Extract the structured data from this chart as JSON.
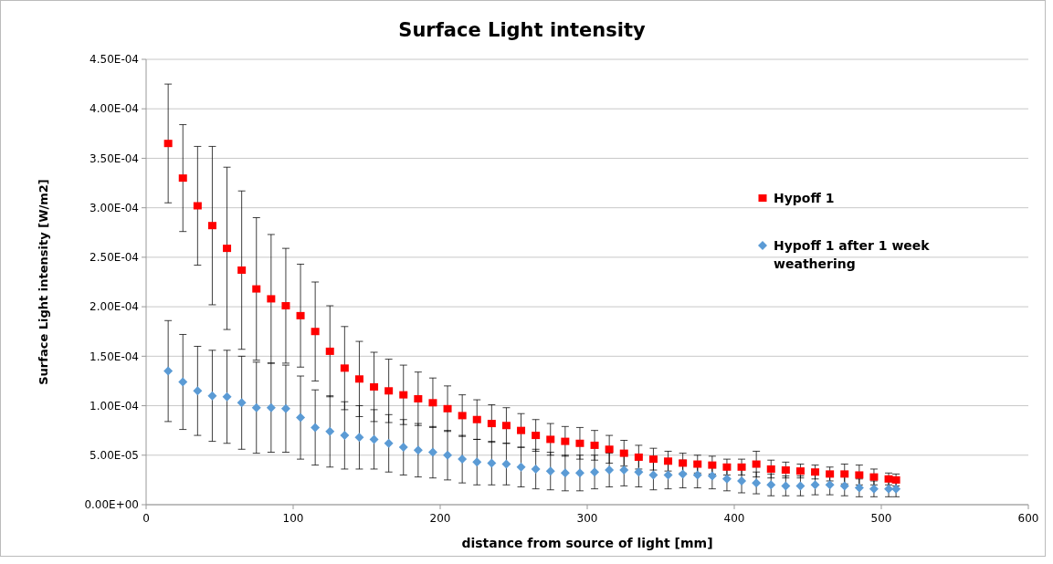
{
  "chart_data": {
    "type": "scatter",
    "title": "Surface Light intensity",
    "xlabel": "distance from source of light [mm]",
    "ylabel": "Surface Light intensity  [W/m2]",
    "x": [
      15,
      25,
      35,
      45,
      55,
      65,
      75,
      85,
      95,
      105,
      115,
      125,
      135,
      145,
      155,
      165,
      175,
      185,
      195,
      205,
      215,
      225,
      235,
      245,
      255,
      265,
      275,
      285,
      295,
      305,
      315,
      325,
      335,
      345,
      355,
      365,
      375,
      385,
      395,
      405,
      415,
      425,
      435,
      445,
      455,
      465,
      475,
      485,
      495,
      505,
      510
    ],
    "series": [
      {
        "name": "Hypoff 1",
        "color": "#ff0000",
        "marker": "square",
        "values": [
          0.000365,
          0.00033,
          0.000302,
          0.000282,
          0.000259,
          0.000237,
          0.000218,
          0.000208,
          0.000201,
          0.000191,
          0.000175,
          0.000155,
          0.000138,
          0.000127,
          0.000119,
          0.000115,
          0.000111,
          0.000107,
          0.000103,
          9.7e-05,
          9e-05,
          8.6e-05,
          8.2e-05,
          8e-05,
          7.5e-05,
          7e-05,
          6.6e-05,
          6.4e-05,
          6.2e-05,
          6e-05,
          5.6e-05,
          5.2e-05,
          4.8e-05,
          4.6e-05,
          4.4e-05,
          4.2e-05,
          4.1e-05,
          4e-05,
          3.8e-05,
          3.8e-05,
          4.1e-05,
          3.6e-05,
          3.5e-05,
          3.4e-05,
          3.3e-05,
          3.1e-05,
          3.1e-05,
          3e-05,
          2.8e-05,
          2.6e-05,
          2.5e-05
        ],
        "errors": [
          6e-05,
          5.4e-05,
          6e-05,
          8e-05,
          8.2e-05,
          8e-05,
          7.2e-05,
          6.5e-05,
          5.8e-05,
          5.2e-05,
          5e-05,
          4.6e-05,
          4.2e-05,
          3.8e-05,
          3.5e-05,
          3.2e-05,
          3e-05,
          2.7e-05,
          2.5e-05,
          2.3e-05,
          2.1e-05,
          2e-05,
          1.9e-05,
          1.8e-05,
          1.7e-05,
          1.6e-05,
          1.6e-05,
          1.5e-05,
          1.6e-05,
          1.5e-05,
          1.4e-05,
          1.3e-05,
          1.2e-05,
          1.1e-05,
          1e-05,
          1e-05,
          9e-06,
          9e-06,
          8e-06,
          8e-06,
          1.3e-05,
          9e-06,
          8e-06,
          7e-06,
          7e-06,
          7e-06,
          1e-05,
          1e-05,
          8e-06,
          6e-06,
          6e-06
        ]
      },
      {
        "name": "Hypoff 1 after 1 week weathering",
        "color": "#5b9bd5",
        "marker": "diamond",
        "values": [
          0.000135,
          0.000124,
          0.000115,
          0.00011,
          0.000109,
          0.000103,
          9.8e-05,
          9.8e-05,
          9.7e-05,
          8.8e-05,
          7.8e-05,
          7.4e-05,
          7e-05,
          6.8e-05,
          6.6e-05,
          6.2e-05,
          5.8e-05,
          5.5e-05,
          5.3e-05,
          5e-05,
          4.6e-05,
          4.3e-05,
          4.2e-05,
          4.1e-05,
          3.8e-05,
          3.6e-05,
          3.4e-05,
          3.2e-05,
          3.2e-05,
          3.3e-05,
          3.5e-05,
          3.5e-05,
          3.3e-05,
          3e-05,
          3e-05,
          3.1e-05,
          3e-05,
          2.9e-05,
          2.6e-05,
          2.4e-05,
          2.2e-05,
          2e-05,
          1.9e-05,
          1.9e-05,
          2e-05,
          2e-05,
          1.9e-05,
          1.7e-05,
          1.6e-05,
          1.6e-05,
          1.6e-05
        ],
        "errors": [
          5.1e-05,
          4.8e-05,
          4.5e-05,
          4.6e-05,
          4.7e-05,
          4.7e-05,
          4.6e-05,
          4.5e-05,
          4.4e-05,
          4.2e-05,
          3.8e-05,
          3.6e-05,
          3.4e-05,
          3.2e-05,
          3e-05,
          2.9e-05,
          2.8e-05,
          2.7e-05,
          2.6e-05,
          2.5e-05,
          2.4e-05,
          2.3e-05,
          2.2e-05,
          2.1e-05,
          2e-05,
          2e-05,
          1.9e-05,
          1.8e-05,
          1.8e-05,
          1.7e-05,
          1.7e-05,
          1.6e-05,
          1.5e-05,
          1.5e-05,
          1.4e-05,
          1.4e-05,
          1.3e-05,
          1.3e-05,
          1.2e-05,
          1.2e-05,
          1.1e-05,
          1.1e-05,
          1e-05,
          1e-05,
          1e-05,
          1e-05,
          1e-05,
          9e-06,
          8e-06,
          8e-06,
          8e-06
        ]
      }
    ],
    "xlim": [
      0,
      600
    ],
    "xticks": [
      0,
      100,
      200,
      300,
      400,
      500,
      600
    ],
    "ylim": [
      0,
      0.00045
    ],
    "yticks": [
      {
        "value": 0,
        "label": "0.00E+00"
      },
      {
        "value": 5e-05,
        "label": "5.00E-05"
      },
      {
        "value": 0.0001,
        "label": "1.00E-04"
      },
      {
        "value": 0.00015,
        "label": "1.50E-04"
      },
      {
        "value": 0.0002,
        "label": "2.00E-04"
      },
      {
        "value": 0.00025,
        "label": "2.50E-04"
      },
      {
        "value": 0.0003,
        "label": "3.00E-04"
      },
      {
        "value": 0.00035,
        "label": "3.50E-04"
      },
      {
        "value": 0.0004,
        "label": "4.00E-04"
      },
      {
        "value": 0.00045,
        "label": "4.50E-04"
      }
    ],
    "grid": "y",
    "legend": "right"
  }
}
